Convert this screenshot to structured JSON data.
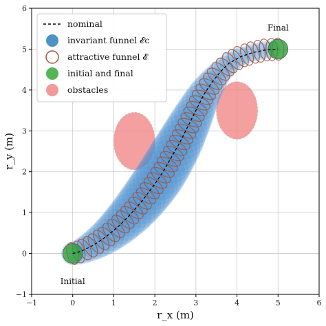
{
  "chart_data": {
    "type": "scatter",
    "xlabel": "r_x (m)",
    "ylabel": "r_y (m)",
    "xlim": [
      -1,
      6
    ],
    "ylim": [
      -1,
      6
    ],
    "xticks": [
      -1,
      0,
      1,
      2,
      3,
      4,
      5,
      6
    ],
    "yticks": [
      -1,
      0,
      1,
      2,
      3,
      4,
      5,
      6
    ],
    "grid": true,
    "legend_position": "top-left",
    "legend": [
      {
        "label": "nominal",
        "marker": "dashed-line",
        "color": "#000000"
      },
      {
        "label": "invariant funnel 𝓔c",
        "marker": "filled-circle",
        "color": "#1f77b4"
      },
      {
        "label": "attractive funnel 𝓔",
        "marker": "hollow-circle",
        "color": "#a0523d"
      },
      {
        "label": "initial and final",
        "marker": "filled-circle",
        "color": "#2ca02c"
      },
      {
        "label": "obstacles",
        "marker": "filled-circle",
        "color": "#f08080"
      }
    ],
    "annotations": [
      {
        "text": "Initial",
        "x": 0.0,
        "y": -0.75
      },
      {
        "text": "Final",
        "x": 5.0,
        "y": 5.45
      }
    ],
    "nominal_path": {
      "x": [
        0.0,
        0.2,
        0.5,
        0.8,
        1.1,
        1.4,
        1.7,
        2.0,
        2.2,
        2.4,
        2.6,
        2.8,
        3.0,
        3.2,
        3.4,
        3.6,
        3.8,
        4.1,
        4.4,
        4.7,
        5.0
      ],
      "y": [
        0.0,
        0.05,
        0.2,
        0.4,
        0.65,
        0.95,
        1.3,
        1.7,
        2.0,
        2.35,
        2.7,
        3.1,
        3.5,
        3.9,
        4.2,
        4.45,
        4.65,
        4.82,
        4.92,
        4.98,
        5.0
      ]
    },
    "obstacles": [
      {
        "cx": 1.5,
        "cy": 2.75,
        "rx": 0.5,
        "ry": 0.7
      },
      {
        "cx": 4.0,
        "cy": 3.5,
        "rx": 0.5,
        "ry": 0.7
      }
    ],
    "initial_point": {
      "x": 0.0,
      "y": 0.0
    },
    "final_point": {
      "x": 5.0,
      "y": 5.0
    }
  }
}
